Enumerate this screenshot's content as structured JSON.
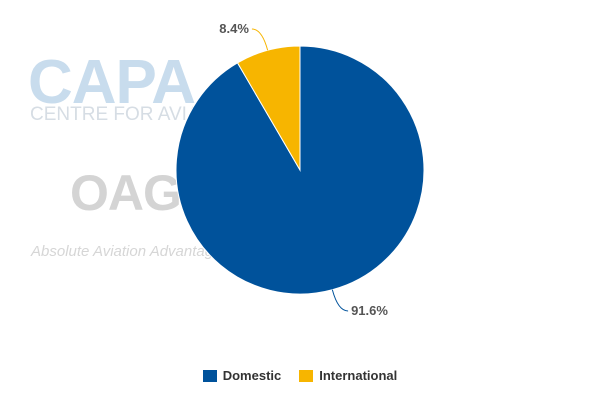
{
  "watermarks": {
    "capa_logo": "CAPA",
    "capa_subtitle": "CENTRE FOR AVIATION",
    "oag_logo": "OAG",
    "oag_tagline": "Absolute Aviation Advantage"
  },
  "chart_data": {
    "type": "pie",
    "title": "",
    "slices": [
      {
        "name": "Domestic",
        "value": 91.6,
        "label": "91.6%",
        "color": "#00529b"
      },
      {
        "name": "International",
        "value": 8.4,
        "label": "8.4%",
        "color": "#f7b500"
      }
    ],
    "start_angle": "12 o'clock",
    "direction": "clockwise",
    "legend": {
      "placement": "bottom-center",
      "entries": [
        "Domestic",
        "International"
      ]
    }
  }
}
